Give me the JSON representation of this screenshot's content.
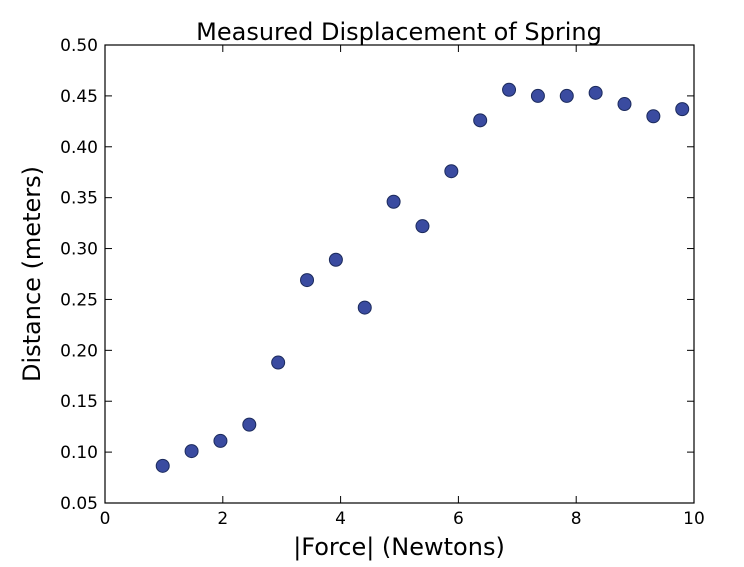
{
  "chart_data": {
    "type": "scatter",
    "title": "Measured Displacement of Spring",
    "xlabel": "|Force| (Newtons)",
    "ylabel": "Distance (meters)",
    "xlim": [
      0,
      10
    ],
    "ylim": [
      0.05,
      0.5
    ],
    "xticks": [
      0,
      2,
      4,
      6,
      8,
      10
    ],
    "xtick_labels": [
      "0",
      "2",
      "4",
      "6",
      "8",
      "10"
    ],
    "yticks": [
      0.05,
      0.1,
      0.15,
      0.2,
      0.25,
      0.3,
      0.35,
      0.4,
      0.45,
      0.5
    ],
    "ytick_labels": [
      "0.05",
      "0.10",
      "0.15",
      "0.20",
      "0.25",
      "0.30",
      "0.35",
      "0.40",
      "0.45",
      "0.50"
    ],
    "grid": false,
    "marker_color": "#3a4ba0",
    "points": [
      {
        "x": 0.98,
        "y": 0.0865
      },
      {
        "x": 1.47,
        "y": 0.101
      },
      {
        "x": 1.96,
        "y": 0.111
      },
      {
        "x": 2.45,
        "y": 0.127
      },
      {
        "x": 2.94,
        "y": 0.188
      },
      {
        "x": 3.43,
        "y": 0.269
      },
      {
        "x": 3.92,
        "y": 0.289
      },
      {
        "x": 4.41,
        "y": 0.242
      },
      {
        "x": 4.9,
        "y": 0.346
      },
      {
        "x": 5.39,
        "y": 0.322
      },
      {
        "x": 5.88,
        "y": 0.376
      },
      {
        "x": 6.37,
        "y": 0.426
      },
      {
        "x": 6.86,
        "y": 0.456
      },
      {
        "x": 7.35,
        "y": 0.45
      },
      {
        "x": 7.84,
        "y": 0.45
      },
      {
        "x": 8.33,
        "y": 0.453
      },
      {
        "x": 8.82,
        "y": 0.442
      },
      {
        "x": 9.31,
        "y": 0.43
      },
      {
        "x": 9.8,
        "y": 0.437
      }
    ]
  }
}
